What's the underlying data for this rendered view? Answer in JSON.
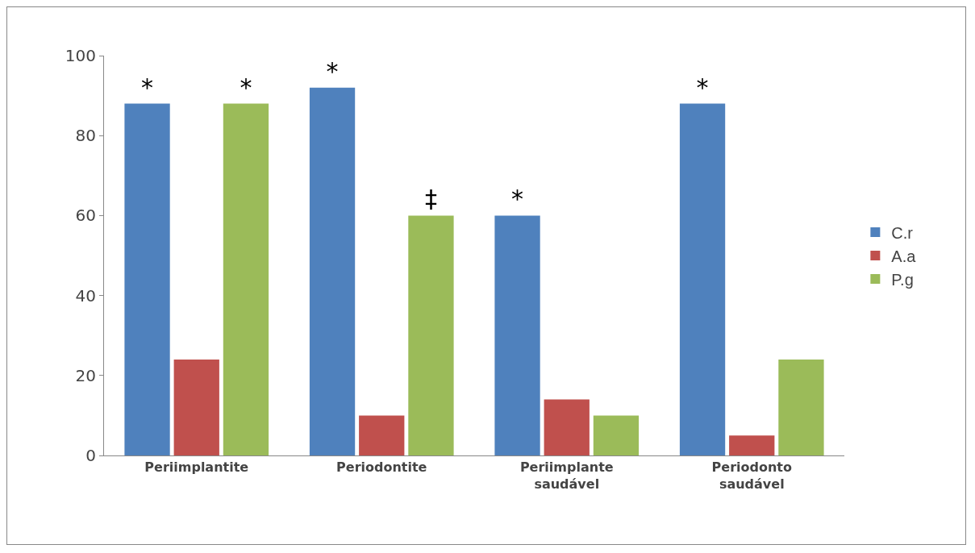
{
  "chart_data": {
    "type": "bar",
    "categories": [
      "Periimplantite",
      "Periodontite",
      "Periimplante saudável",
      "Periodonto saudável"
    ],
    "series": [
      {
        "name": "C.r",
        "color": "#4f81bd",
        "values": [
          88,
          92,
          60,
          88
        ],
        "value_labels": [
          "*",
          "*",
          "*",
          "*"
        ]
      },
      {
        "name": "A.a",
        "color": "#c0504d",
        "values": [
          24,
          10,
          14,
          5
        ]
      },
      {
        "name": "P.g",
        "color": "#9bbb59",
        "values": [
          88,
          60,
          10,
          24
        ],
        "value_labels": [
          "*",
          "‡",
          null,
          null
        ]
      }
    ],
    "ylim": [
      0,
      100
    ],
    "yticks": [
      0,
      20,
      40,
      60,
      80,
      100
    ],
    "grid": false,
    "legend": "right"
  }
}
